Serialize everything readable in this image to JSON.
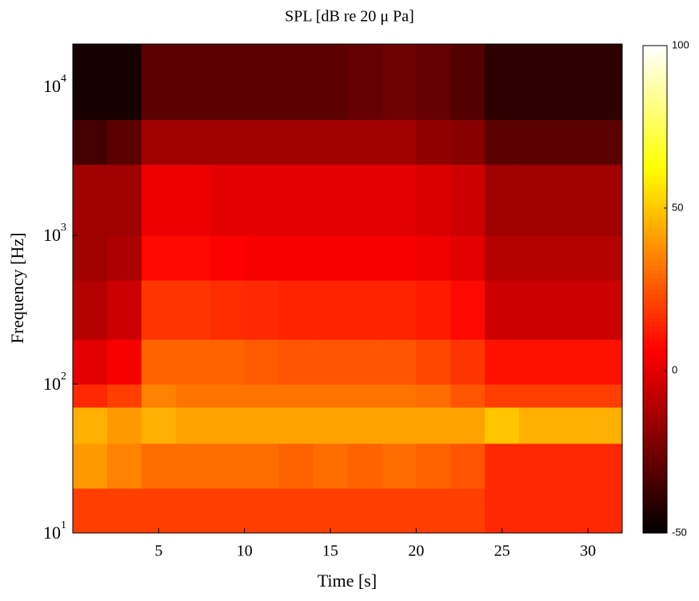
{
  "chart_data": {
    "type": "heatmap",
    "title": "SPL [dB re 20 μ Pa]",
    "xlabel": "Time [s]",
    "ylabel": "Frequency [Hz]",
    "x": [
      0,
      2,
      4,
      6,
      8,
      10,
      12,
      14,
      16,
      18,
      20,
      22,
      24,
      26,
      28,
      30,
      32
    ],
    "y": [
      10,
      20,
      40,
      70,
      100,
      200,
      500,
      1000,
      3000,
      6000,
      19300
    ],
    "z": [
      [
        20,
        20,
        20,
        20,
        20,
        20,
        20,
        20,
        20,
        20,
        20,
        20,
        15,
        15,
        15,
        15
      ],
      [
        40,
        35,
        30,
        30,
        30,
        30,
        28,
        30,
        28,
        30,
        28,
        25,
        15,
        15,
        15,
        15
      ],
      [
        45,
        40,
        45,
        42,
        42,
        42,
        42,
        42,
        42,
        42,
        42,
        42,
        50,
        45,
        45,
        45
      ],
      [
        15,
        20,
        35,
        32,
        32,
        32,
        32,
        32,
        32,
        32,
        30,
        25,
        20,
        20,
        20,
        20
      ],
      [
        0,
        5,
        28,
        28,
        28,
        26,
        25,
        25,
        25,
        25,
        22,
        18,
        10,
        10,
        10,
        10
      ],
      [
        -10,
        -5,
        18,
        18,
        16,
        15,
        14,
        14,
        14,
        14,
        12,
        8,
        -5,
        -5,
        -5,
        -5
      ],
      [
        -15,
        -12,
        8,
        8,
        6,
        5,
        5,
        5,
        5,
        5,
        3,
        0,
        -10,
        -10,
        -10,
        -10
      ],
      [
        -15,
        -15,
        2,
        2,
        0,
        0,
        0,
        0,
        0,
        0,
        -2,
        -5,
        -15,
        -15,
        -15,
        -15
      ],
      [
        -35,
        -30,
        -15,
        -15,
        -15,
        -15,
        -15,
        -15,
        -15,
        -15,
        -18,
        -20,
        -30,
        -30,
        -30,
        -30
      ],
      [
        -45,
        -45,
        -30,
        -30,
        -30,
        -30,
        -30,
        -30,
        -28,
        -26,
        -28,
        -32,
        -40,
        -40,
        -40,
        -40
      ]
    ],
    "xlim": [
      0,
      32
    ],
    "ylim": [
      10,
      19300
    ],
    "yscale": "log",
    "xticks": [
      5,
      10,
      15,
      20,
      25,
      30
    ],
    "yticks": [
      {
        "value": 10,
        "label": "10^1"
      },
      {
        "value": 100,
        "label": "10^2"
      },
      {
        "value": 1000,
        "label": "10^3"
      },
      {
        "value": 10000,
        "label": "10^4"
      }
    ],
    "colormap": "hot",
    "clim": [
      -50,
      100
    ],
    "cticks": [
      -50,
      0,
      50,
      100
    ]
  }
}
